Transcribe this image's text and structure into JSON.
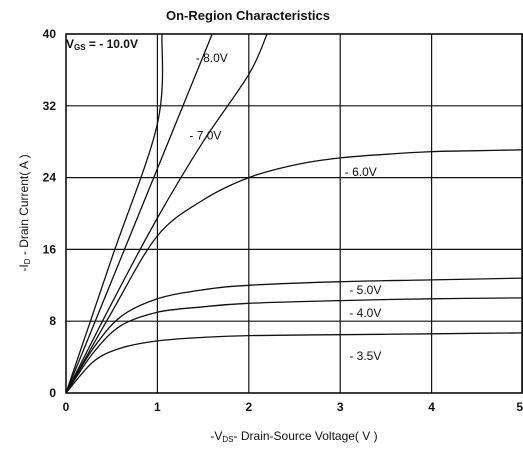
{
  "chart_data": {
    "type": "line",
    "title": "On-Region Characteristics",
    "xlabel_prefix": "-V",
    "xlabel_sub": "DS",
    "xlabel_rest": "- Drain-Source Voltage( V )",
    "ylabel_prefix": "-I",
    "ylabel_sub": "D",
    "ylabel_rest": " - Drain Current( A )",
    "xlim": [
      0,
      5
    ],
    "ylim": [
      0,
      40
    ],
    "x_ticks": [
      0,
      1,
      2,
      3,
      4,
      5
    ],
    "y_ticks": [
      0,
      8,
      16,
      24,
      32,
      40
    ],
    "x_tick_labels": [
      "0",
      "1",
      "2",
      "3",
      "4",
      "5"
    ],
    "y_tick_labels": [
      "0",
      "8",
      "16",
      "24",
      "32",
      "40"
    ],
    "grid": true,
    "vgs_label_prefix": "V",
    "vgs_label_sub": "GS",
    "vgs_label_rest": " = - 10.0V",
    "series": [
      {
        "name": "- 10.0V",
        "label": "",
        "points": [
          [
            0,
            0
          ],
          [
            0.5,
            15
          ],
          [
            1,
            30
          ],
          [
            1.05,
            40
          ]
        ]
      },
      {
        "name": "- 8.0V",
        "label": "- 8.0V",
        "label_at": [
          1.42,
          37.3
        ],
        "points": [
          [
            0,
            0
          ],
          [
            0.5,
            12.5
          ],
          [
            1,
            25
          ],
          [
            1.5,
            37.5
          ],
          [
            1.6,
            40
          ]
        ]
      },
      {
        "name": "- 7.0V",
        "label": "- 7.0V",
        "label_at": [
          1.35,
          28.7
        ],
        "points": [
          [
            0,
            0
          ],
          [
            0.5,
            10
          ],
          [
            1,
            19.5
          ],
          [
            1.5,
            28
          ],
          [
            2,
            35.5
          ],
          [
            2.2,
            40
          ]
        ]
      },
      {
        "name": "- 6.0V",
        "label": "- 6.0V",
        "label_at": [
          3.05,
          24.6
        ],
        "points": [
          [
            0,
            0
          ],
          [
            0.5,
            9
          ],
          [
            1,
            17.5
          ],
          [
            1.5,
            21.5
          ],
          [
            2,
            24
          ],
          [
            2.5,
            25.4
          ],
          [
            3,
            26.2
          ],
          [
            3.5,
            26.6
          ],
          [
            4,
            26.9
          ],
          [
            4.5,
            27
          ],
          [
            5,
            27.1
          ]
        ]
      },
      {
        "name": "- 5.0V",
        "label": "- 5.0V",
        "label_at": [
          3.1,
          11.5
        ],
        "points": [
          [
            0,
            0
          ],
          [
            0.3,
            5
          ],
          [
            0.6,
            8.5
          ],
          [
            1,
            10.5
          ],
          [
            1.5,
            11.5
          ],
          [
            2,
            12
          ],
          [
            3,
            12.4
          ],
          [
            4,
            12.6
          ],
          [
            5,
            12.8
          ]
        ]
      },
      {
        "name": "- 4.0V",
        "label": "- 4.0V",
        "label_at": [
          3.1,
          8.9
        ],
        "points": [
          [
            0,
            0
          ],
          [
            0.3,
            4.5
          ],
          [
            0.6,
            7.5
          ],
          [
            1,
            9
          ],
          [
            1.5,
            9.6
          ],
          [
            2,
            10
          ],
          [
            3,
            10.3
          ],
          [
            4,
            10.5
          ],
          [
            5,
            10.6
          ]
        ]
      },
      {
        "name": "- 3.5V",
        "label": "- 3.5V",
        "label_at": [
          3.1,
          4.1
        ],
        "points": [
          [
            0,
            0
          ],
          [
            0.3,
            3.5
          ],
          [
            0.6,
            5
          ],
          [
            1,
            5.8
          ],
          [
            1.5,
            6.2
          ],
          [
            2,
            6.4
          ],
          [
            3,
            6.5
          ],
          [
            4,
            6.6
          ],
          [
            5,
            6.7
          ]
        ]
      }
    ]
  }
}
